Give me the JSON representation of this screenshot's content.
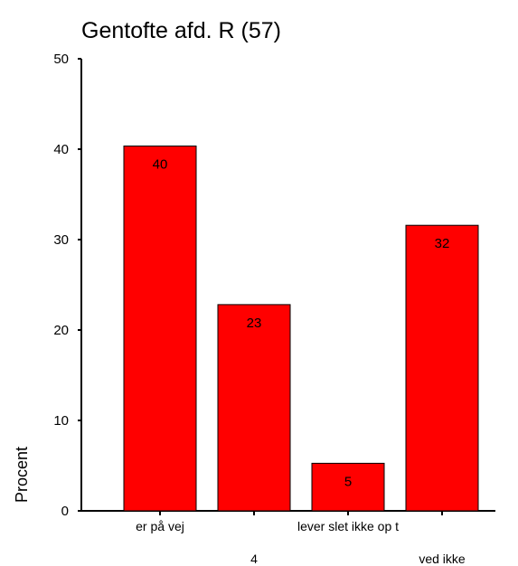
{
  "chart_data": {
    "type": "bar",
    "title": "Gentofte afd. R (57)",
    "xlabel": "",
    "ylabel": "Procent",
    "ylim": [
      0,
      50
    ],
    "yticks": [
      0,
      10,
      20,
      30,
      40,
      50
    ],
    "categories": [
      "er på vej",
      "4",
      "lever slet ikke op t",
      "ved ikke"
    ],
    "values": [
      40.35,
      22.81,
      5.26,
      31.58
    ],
    "data_labels": [
      "40",
      "23",
      "5",
      "32"
    ],
    "bar_color": "#ff0000",
    "grid": false,
    "legend": "none"
  }
}
